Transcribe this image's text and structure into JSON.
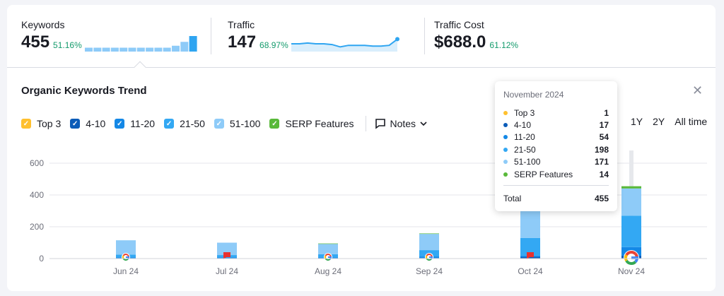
{
  "metrics": [
    {
      "label": "Keywords",
      "value": "455",
      "change": "51.16%",
      "spark_type": "bar",
      "spark": [
        2,
        2,
        2,
        2,
        2,
        2,
        2,
        2,
        2,
        2,
        3,
        5,
        8
      ]
    },
    {
      "label": "Traffic",
      "value": "147",
      "change": "68.97%",
      "spark_type": "line",
      "spark": [
        5,
        5,
        5.1,
        5,
        5,
        4.9,
        4.6,
        4.8,
        4.8,
        4.8,
        4.7,
        4.7,
        4.8,
        5.6
      ]
    },
    {
      "label": "Traffic Cost",
      "value": "$688.0",
      "change": "61.12%"
    }
  ],
  "section_title": "Organic Keywords Trend",
  "legend": [
    {
      "label": "Top 3",
      "color": "#ffc02e"
    },
    {
      "label": "4-10",
      "color": "#0b5cb8"
    },
    {
      "label": "11-20",
      "color": "#1488e6"
    },
    {
      "label": "21-50",
      "color": "#33a8f3"
    },
    {
      "label": "51-100",
      "color": "#8ecbf8"
    },
    {
      "label": "SERP Features",
      "color": "#59b93a"
    }
  ],
  "notes_label": "Notes",
  "periods": [
    "1Y",
    "2Y",
    "All time"
  ],
  "tooltip": {
    "title": "November 2024",
    "rows": [
      {
        "label": "Top 3",
        "value": "1",
        "color": "#ffc02e"
      },
      {
        "label": "4-10",
        "value": "17",
        "color": "#0b5cb8"
      },
      {
        "label": "11-20",
        "value": "54",
        "color": "#1488e6"
      },
      {
        "label": "21-50",
        "value": "198",
        "color": "#33a8f3"
      },
      {
        "label": "51-100",
        "value": "171",
        "color": "#8ecbf8"
      },
      {
        "label": "SERP Features",
        "value": "14",
        "color": "#59b93a"
      }
    ],
    "total_label": "Total",
    "total_value": "455"
  },
  "chart_data": {
    "type": "bar",
    "stacked": true,
    "categories": [
      "Jun 24",
      "Jul 24",
      "Aug 24",
      "Sep 24",
      "Oct 24",
      "Nov 24"
    ],
    "series": [
      {
        "name": "Top 3",
        "values": [
          0,
          0,
          0,
          0,
          1,
          1
        ]
      },
      {
        "name": "4-10",
        "values": [
          2,
          2,
          2,
          3,
          8,
          17
        ]
      },
      {
        "name": "11-20",
        "values": [
          5,
          5,
          5,
          10,
          10,
          54
        ]
      },
      {
        "name": "21-50",
        "values": [
          18,
          15,
          20,
          40,
          110,
          198
        ]
      },
      {
        "name": "51-100",
        "values": [
          90,
          78,
          65,
          102,
          170,
          171
        ]
      },
      {
        "name": "SERP Features",
        "values": [
          0,
          0,
          3,
          3,
          5,
          14
        ]
      }
    ],
    "yticks": [
      0,
      200,
      400,
      600
    ],
    "ylim": [
      0,
      680
    ],
    "grid": true,
    "markers": [
      "google",
      "note",
      "google",
      "google",
      "note",
      "google"
    ]
  }
}
